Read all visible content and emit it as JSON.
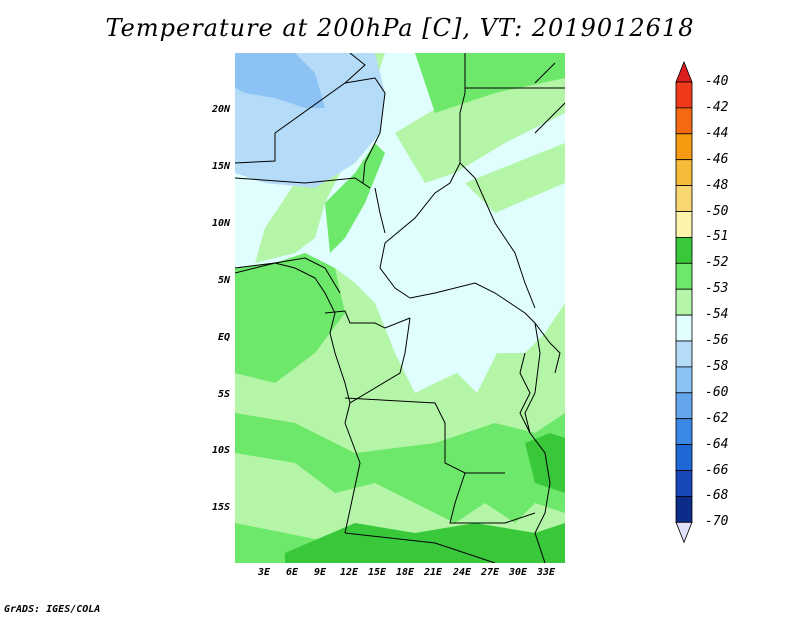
{
  "title": "Temperature at 200hPa [C], VT: 2019012618",
  "credit": "GrADS: IGES/COLA",
  "lat_labels": [
    "20N",
    "15N",
    "10N",
    "5N",
    "EQ",
    "5S",
    "10S",
    "15S"
  ],
  "lon_labels": [
    "3E",
    "6E",
    "9E",
    "12E",
    "15E",
    "18E",
    "21E",
    "24E",
    "27E",
    "30E",
    "33E"
  ],
  "colorbar": {
    "labels": [
      "-40",
      "-42",
      "-44",
      "-46",
      "-48",
      "-50",
      "-51",
      "-52",
      "-53",
      "-54",
      "-56",
      "-58",
      "-60",
      "-62",
      "-64",
      "-66",
      "-68",
      "-70"
    ],
    "colors": [
      "#dd1e1e",
      "#ee3a1a",
      "#f36a10",
      "#f69a12",
      "#f7bb3a",
      "#f9d770",
      "#fcf4aa",
      "#38c83a",
      "#6ee86a",
      "#b4f5a8",
      "#e0fefe",
      "#b4dcf8",
      "#8cc2f4",
      "#64a6ee",
      "#3c88e6",
      "#2068d8",
      "#1848b8",
      "#0c2c8c",
      "#000a50"
    ],
    "under_color": "#e0e0f8"
  },
  "palette": {
    "green_dark": "#38c83a",
    "green": "#6ee86a",
    "green_light": "#b4f5a8",
    "cyan": "#e0fefe",
    "blue_light": "#b4dcf8",
    "blue": "#8cc2f4"
  }
}
